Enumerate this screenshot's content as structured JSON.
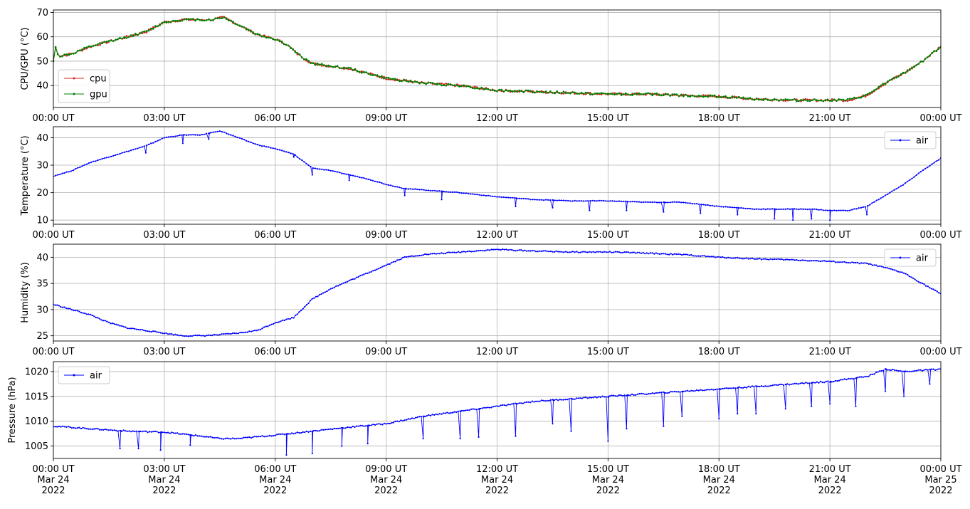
{
  "chart_data": [
    {
      "type": "line",
      "ylabel": "CPU/GPU (°C)",
      "ylim": [
        31,
        71
      ],
      "yticks": [
        40,
        50,
        60,
        70
      ],
      "legend_position": "lower-left",
      "grid": true,
      "x_ticks": [
        "00:00 UT",
        "03:00 UT",
        "06:00 UT",
        "09:00 UT",
        "12:00 UT",
        "15:00 UT",
        "18:00 UT",
        "21:00 UT",
        "00:00 UT"
      ],
      "x_unit": "hours since 2022-03-24 00:00 UT",
      "series": [
        {
          "name": "cpu",
          "color": "#d62728",
          "x": [
            0,
            0.05,
            0.15,
            0.5,
            1,
            1.5,
            2,
            2.5,
            3,
            3.5,
            4,
            4.3,
            4.6,
            5,
            5.5,
            6,
            6.3,
            6.6,
            7,
            7.5,
            8,
            8.5,
            9,
            9.5,
            10,
            11,
            12,
            13,
            14,
            15,
            16,
            17,
            18,
            19,
            20,
            20.5,
            21,
            21.5,
            22,
            22.5,
            23,
            23.5,
            24
          ],
          "values": [
            50,
            56,
            52,
            53,
            56,
            58,
            60,
            62,
            66,
            67,
            67,
            67,
            68,
            65,
            61,
            59,
            57,
            53,
            49,
            48,
            47,
            45,
            43,
            42,
            41,
            40,
            38,
            37.5,
            37,
            36.5,
            36.5,
            36,
            35.5,
            34.5,
            34,
            34,
            34,
            34,
            36,
            41,
            45,
            50,
            56
          ]
        },
        {
          "name": "gpu",
          "color": "#008000",
          "x": [
            0,
            0.05,
            0.15,
            0.5,
            1,
            1.5,
            2,
            2.5,
            3,
            3.5,
            4,
            4.3,
            4.6,
            5,
            5.5,
            6,
            6.3,
            6.6,
            7,
            7.5,
            8,
            8.5,
            9,
            9.5,
            10,
            11,
            12,
            13,
            14,
            15,
            16,
            17,
            18,
            19,
            20,
            20.5,
            21,
            21.5,
            22,
            22.5,
            23,
            23.5,
            24
          ],
          "values": [
            50,
            56,
            52,
            53,
            56,
            58,
            60,
            62,
            66,
            67,
            67,
            67,
            68,
            65,
            61,
            59,
            57,
            53,
            49,
            48,
            47,
            45,
            43,
            42,
            41,
            40,
            38,
            37.5,
            37,
            36.5,
            36.5,
            36,
            35.5,
            34.5,
            34,
            34,
            34,
            34,
            36,
            41,
            45,
            50,
            56
          ]
        }
      ]
    },
    {
      "type": "line",
      "ylabel": "Temperature (°C)",
      "ylim": [
        8.5,
        44
      ],
      "yticks": [
        10,
        20,
        30,
        40
      ],
      "legend_position": "upper-right",
      "grid": true,
      "x_ticks": [
        "00:00 UT",
        "03:00 UT",
        "06:00 UT",
        "09:00 UT",
        "12:00 UT",
        "15:00 UT",
        "18:00 UT",
        "21:00 UT",
        "00:00 UT"
      ],
      "series": [
        {
          "name": "air",
          "color": "#0000ff",
          "x": [
            0,
            0.5,
            1,
            1.5,
            2,
            2.5,
            3,
            3.5,
            4,
            4.5,
            5,
            5.5,
            6,
            6.5,
            7,
            7.5,
            8,
            8.5,
            9,
            9.5,
            10,
            11,
            12,
            13,
            14,
            15,
            16,
            17,
            18,
            19,
            20,
            20.5,
            21,
            21.5,
            22,
            22.5,
            23,
            23.5,
            24
          ],
          "values": [
            26,
            28,
            31,
            33,
            35,
            37,
            40,
            41,
            41,
            42.5,
            40,
            37.5,
            36,
            34,
            29,
            28,
            26.5,
            25,
            23,
            21.5,
            21,
            20,
            18.5,
            17.5,
            17,
            17,
            16.5,
            16.5,
            15,
            14,
            14,
            14,
            13.5,
            13.5,
            15,
            19,
            23,
            28,
            32.5
          ],
          "dips": [
            [
              2.5,
              34.5
            ],
            [
              3.5,
              38
            ],
            [
              4.2,
              39.5
            ],
            [
              6.5,
              33
            ],
            [
              7,
              26.5
            ],
            [
              8,
              24.5
            ],
            [
              9.5,
              19
            ],
            [
              10.5,
              17.5
            ],
            [
              12.5,
              15
            ],
            [
              13.5,
              14.5
            ],
            [
              14.5,
              13.5
            ],
            [
              15.5,
              13.5
            ],
            [
              16.5,
              13
            ],
            [
              17.5,
              12.5
            ],
            [
              18.5,
              12
            ],
            [
              19.5,
              10.5
            ],
            [
              20,
              10
            ],
            [
              20.5,
              10.5
            ],
            [
              21,
              10
            ],
            [
              22,
              12
            ]
          ]
        }
      ]
    },
    {
      "type": "line",
      "ylabel": "Humidity (%)",
      "ylim": [
        24,
        42.5
      ],
      "yticks": [
        25,
        30,
        35,
        40
      ],
      "legend_position": "upper-right",
      "grid": true,
      "x_ticks": [
        "00:00 UT",
        "03:00 UT",
        "06:00 UT",
        "09:00 UT",
        "12:00 UT",
        "15:00 UT",
        "18:00 UT",
        "21:00 UT",
        "00:00 UT"
      ],
      "series": [
        {
          "name": "air",
          "color": "#0000ff",
          "x": [
            0,
            0.5,
            1,
            1.5,
            2,
            2.5,
            3,
            3.5,
            4,
            4.5,
            5,
            5.5,
            6,
            6.5,
            7,
            7.5,
            8,
            8.5,
            9,
            9.5,
            10,
            11,
            12,
            13,
            14,
            15,
            16,
            17,
            18,
            19,
            20,
            21,
            22,
            22.5,
            23,
            23.5,
            24
          ],
          "values": [
            31,
            30,
            29,
            27.5,
            26.5,
            26,
            25.5,
            25,
            25,
            25.2,
            25.5,
            26,
            27.5,
            28.5,
            32,
            34,
            35.5,
            37,
            38.5,
            40,
            40.5,
            41,
            41.5,
            41.2,
            41,
            41,
            40.8,
            40.5,
            40,
            39.7,
            39.5,
            39.2,
            38.8,
            38,
            37,
            35,
            33
          ]
        }
      ]
    },
    {
      "type": "line",
      "ylabel": "Pressure (hPa)",
      "ylim": [
        1002.5,
        1022
      ],
      "yticks": [
        1005,
        1010,
        1015,
        1020
      ],
      "legend_position": "upper-left",
      "grid": true,
      "x_ticks": [
        "00:00 UT\nMar 24\n2022",
        "03:00 UT\nMar 24\n2022",
        "06:00 UT\nMar 24\n2022",
        "09:00 UT\nMar 24\n2022",
        "12:00 UT\nMar 24\n2022",
        "15:00 UT\nMar 24\n2022",
        "18:00 UT\nMar 24\n2022",
        "21:00 UT\nMar 24\n2022",
        "00:00 UT\nMar 25\n2022"
      ],
      "series": [
        {
          "name": "air",
          "color": "#0000ff",
          "x": [
            0,
            1,
            2,
            3,
            4,
            4.5,
            5,
            6,
            7,
            8,
            9,
            10,
            11,
            12,
            13,
            14,
            15,
            16,
            17,
            18,
            19,
            20,
            21,
            22,
            22.5,
            23,
            24
          ],
          "values": [
            1009,
            1008.5,
            1008,
            1007.8,
            1007,
            1006.5,
            1006.5,
            1007.2,
            1008,
            1008.8,
            1009.5,
            1011,
            1012,
            1013,
            1014,
            1014.5,
            1015,
            1015.5,
            1016,
            1016.5,
            1017,
            1017.5,
            1018,
            1019,
            1020.5,
            1020,
            1020.5
          ],
          "dips": [
            [
              1.8,
              1004.5
            ],
            [
              2.3,
              1004.5
            ],
            [
              2.9,
              1004.2
            ],
            [
              3.7,
              1005.2
            ],
            [
              6.3,
              1003.2
            ],
            [
              7,
              1003.5
            ],
            [
              7.8,
              1005
            ],
            [
              8.5,
              1005.5
            ],
            [
              10,
              1006.5
            ],
            [
              11,
              1006.5
            ],
            [
              11.5,
              1006.8
            ],
            [
              12.5,
              1007
            ],
            [
              13.5,
              1009.5
            ],
            [
              14,
              1008
            ],
            [
              15,
              1006
            ],
            [
              15.5,
              1008.5
            ],
            [
              16.5,
              1009
            ],
            [
              17,
              1011
            ],
            [
              18,
              1010.5
            ],
            [
              18.5,
              1011.5
            ],
            [
              19,
              1011.5
            ],
            [
              19.8,
              1012.5
            ],
            [
              20.5,
              1013
            ],
            [
              21,
              1013.5
            ],
            [
              21.7,
              1013
            ],
            [
              22.5,
              1016
            ],
            [
              23,
              1015
            ],
            [
              23.7,
              1017.5
            ]
          ]
        }
      ]
    }
  ]
}
